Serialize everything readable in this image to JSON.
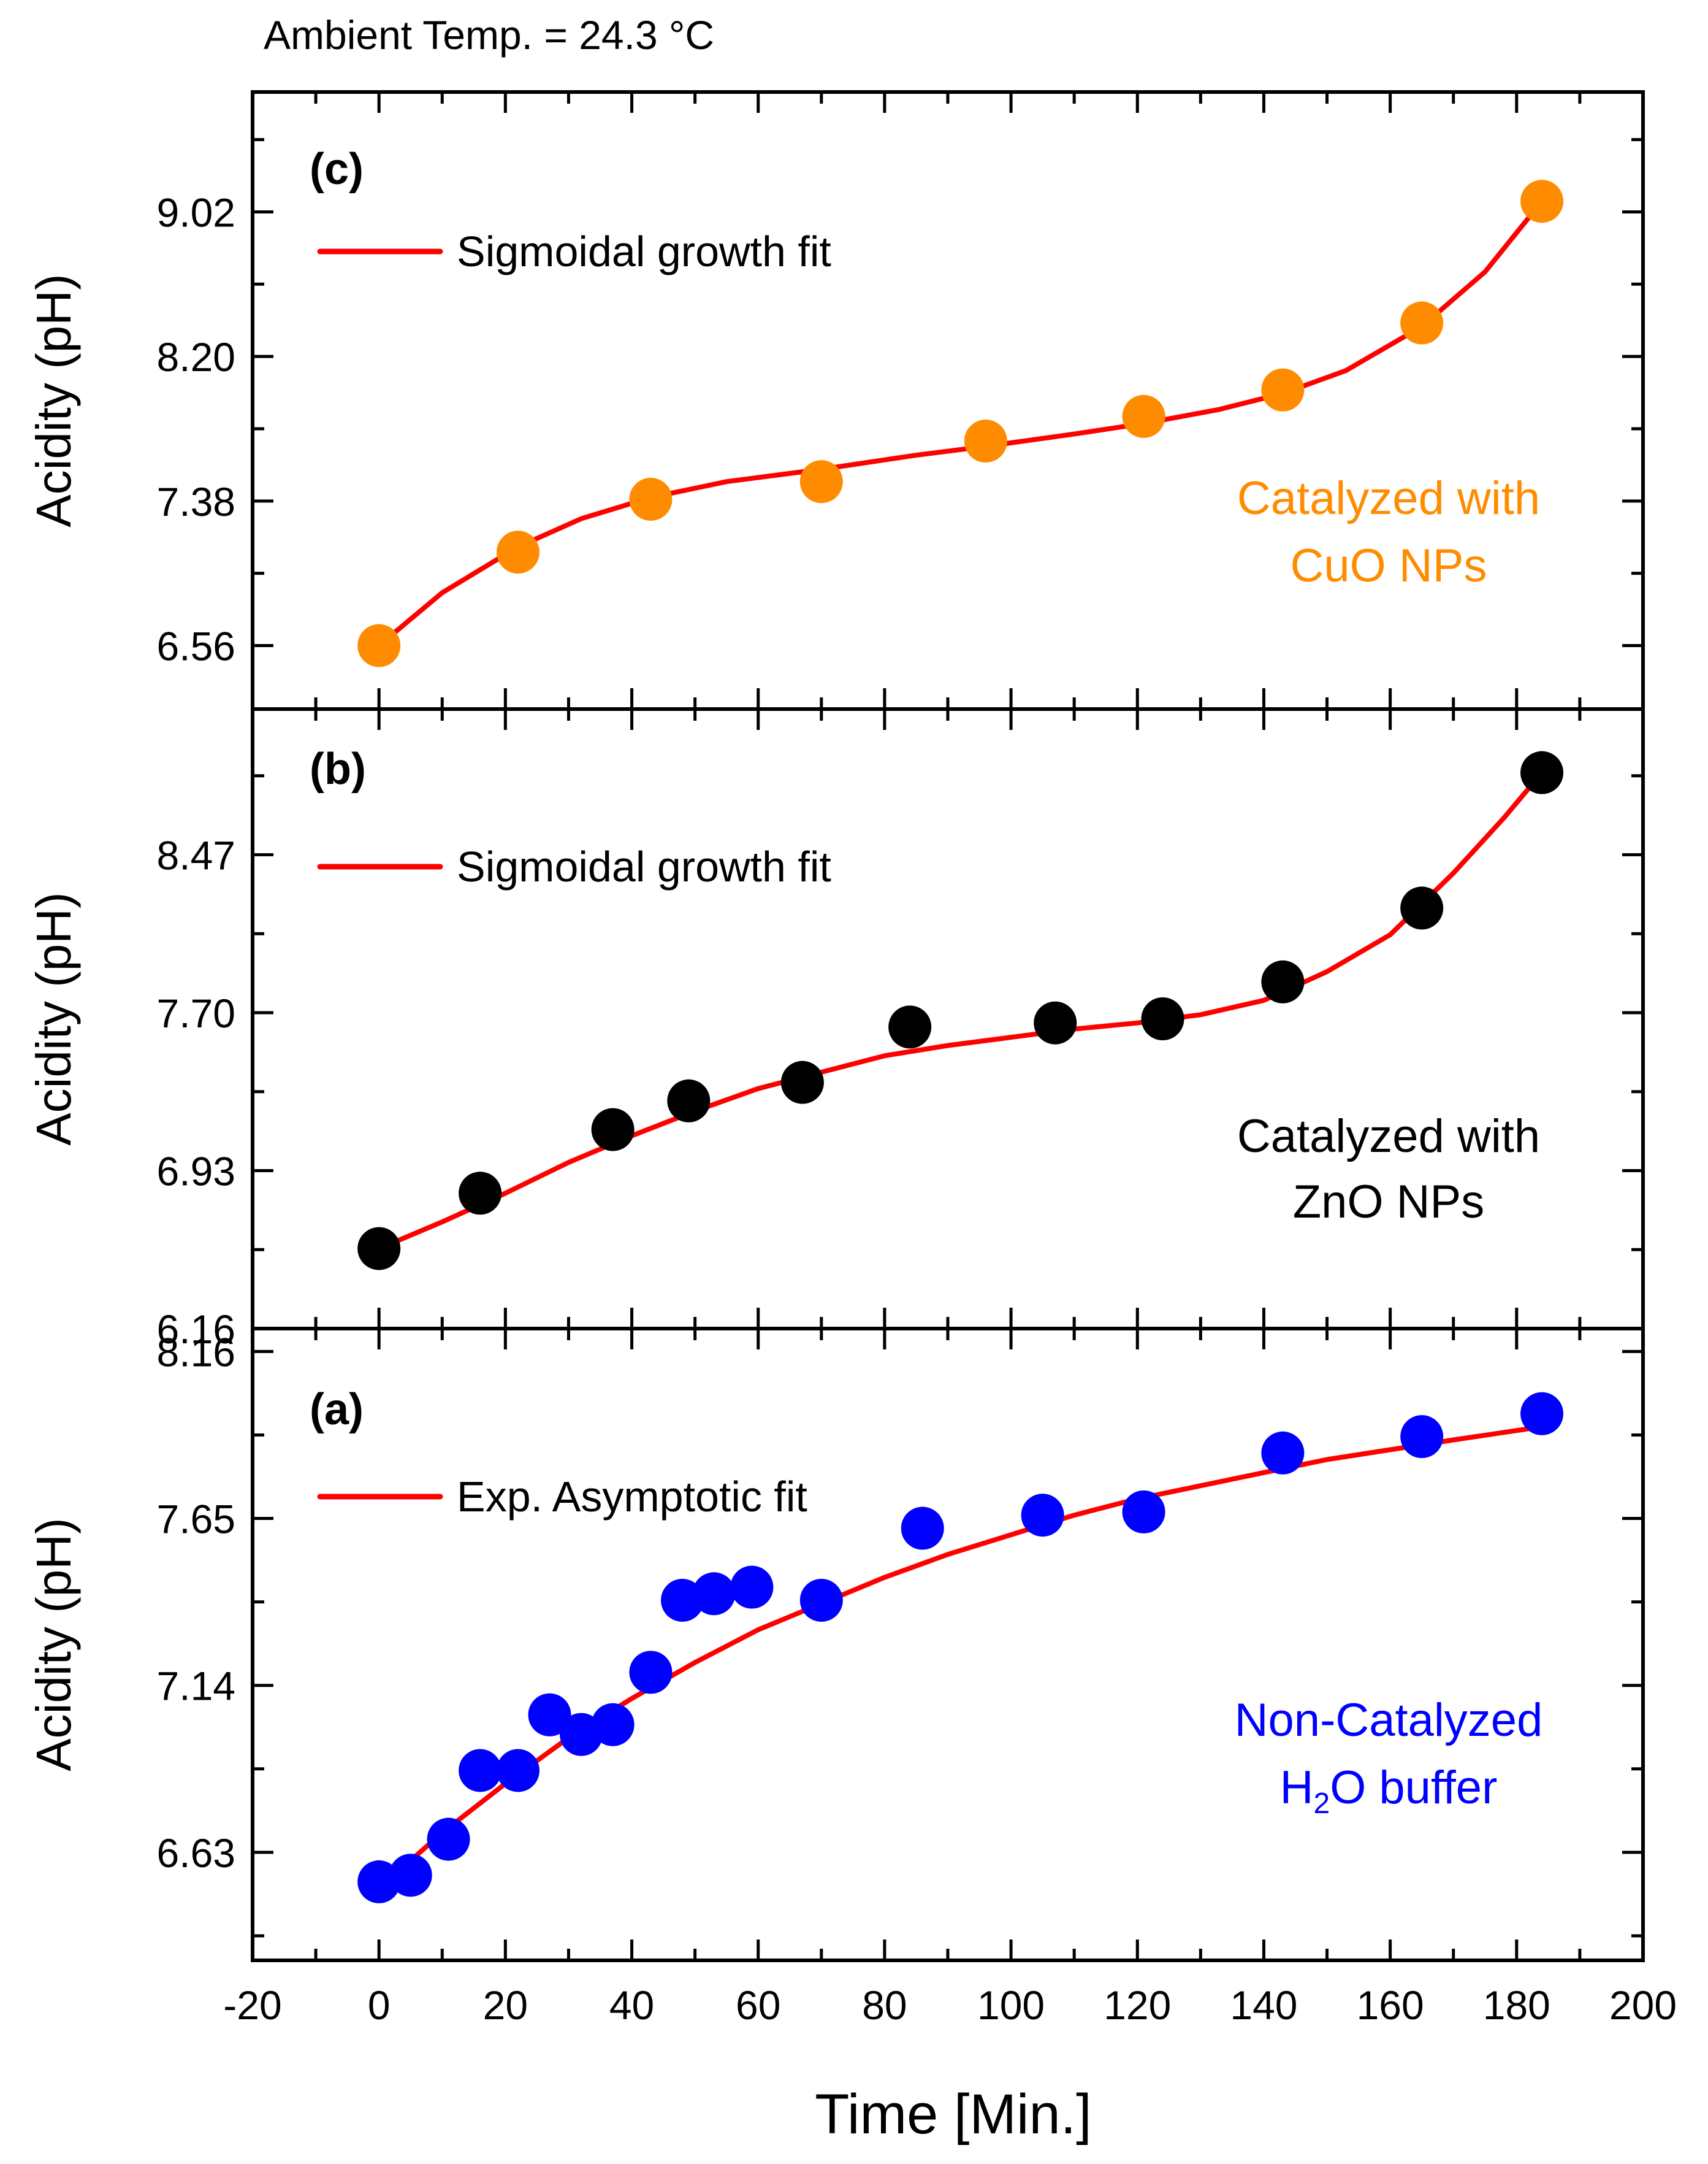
{
  "figure": {
    "header": "Ambient Temp. = 24.3 °C",
    "xlabel": "Time [Min.]",
    "colors": {
      "fit": "#ff0000",
      "axis": "#000000",
      "cuo": "#ff8c00",
      "zno": "#000000",
      "h2o": "#0000ff"
    }
  },
  "chart_data": [
    {
      "type": "scatter",
      "panel": "(c)",
      "ylabel": "Acidity (pH)",
      "xlim": [
        -20,
        200
      ],
      "xticks": [
        -20,
        0,
        20,
        40,
        60,
        80,
        100,
        120,
        140,
        160,
        180,
        200
      ],
      "ylim": [
        6.2,
        9.7
      ],
      "yticks": [
        6.56,
        7.38,
        8.2,
        9.02
      ],
      "ytick_labels": [
        "6.56",
        "7.38",
        "8.20",
        "9.02"
      ],
      "legend": "Sigmoidal growth fit",
      "annotation": [
        "Catalyzed with",
        "CuO NPs"
      ],
      "color": "#ff8c00",
      "points": {
        "x": [
          0,
          22,
          43,
          70,
          96,
          121,
          143,
          165,
          184
        ],
        "y": [
          6.56,
          7.09,
          7.39,
          7.49,
          7.72,
          7.86,
          8.01,
          8.39,
          9.08
        ]
      },
      "fit": {
        "x": [
          0,
          10,
          22,
          32,
          43,
          55,
          70,
          85,
          96,
          110,
          121,
          133,
          143,
          153,
          165,
          175,
          184
        ],
        "y": [
          6.56,
          6.86,
          7.12,
          7.28,
          7.4,
          7.49,
          7.56,
          7.64,
          7.69,
          7.76,
          7.82,
          7.9,
          7.99,
          8.12,
          8.37,
          8.68,
          9.08
        ]
      }
    },
    {
      "type": "scatter",
      "panel": "(b)",
      "ylabel": "Acidity (pH)",
      "xlim": [
        -20,
        200
      ],
      "xticks": [
        -20,
        0,
        20,
        40,
        60,
        80,
        100,
        120,
        140,
        160,
        180,
        200
      ],
      "ylim": [
        6.16,
        9.18
      ],
      "yticks": [
        6.16,
        6.93,
        7.7,
        8.47
      ],
      "ytick_labels": [
        "6.16",
        "6.93",
        "7.70",
        "8.47"
      ],
      "legend": "Sigmoidal growth fit",
      "annotation": [
        "Catalyzed with",
        "ZnO NPs"
      ],
      "color": "#000000",
      "points": {
        "x": [
          0,
          16,
          37,
          49,
          67,
          84,
          107,
          124,
          143,
          165,
          184
        ],
        "y": [
          6.55,
          6.82,
          7.13,
          7.27,
          7.36,
          7.63,
          7.65,
          7.67,
          7.85,
          8.21,
          8.87
        ]
      },
      "fit": {
        "x": [
          0,
          10,
          20,
          30,
          40,
          50,
          60,
          70,
          80,
          90,
          100,
          110,
          120,
          130,
          140,
          150,
          160,
          170,
          178,
          184
        ],
        "y": [
          6.55,
          6.68,
          6.82,
          6.97,
          7.1,
          7.22,
          7.33,
          7.41,
          7.49,
          7.54,
          7.58,
          7.62,
          7.65,
          7.69,
          7.76,
          7.9,
          8.08,
          8.38,
          8.65,
          8.87
        ]
      }
    },
    {
      "type": "scatter",
      "panel": "(a)",
      "ylabel": "Acidity (pH)",
      "xlim": [
        -20,
        200
      ],
      "xticks": [
        -20,
        0,
        20,
        40,
        60,
        80,
        100,
        120,
        140,
        160,
        180,
        200
      ],
      "ylim": [
        6.3,
        8.23
      ],
      "yticks": [
        6.63,
        7.14,
        7.65,
        8.16
      ],
      "ytick_labels": [
        "6.63",
        "7.14",
        "7.65",
        "8.16"
      ],
      "legend": "Exp. Asymptotic fit",
      "annotation": [
        "Non-Catalyzed",
        "H",
        "2",
        "O buffer"
      ],
      "color": "#0000ff",
      "points": {
        "x": [
          0,
          5,
          11,
          16,
          22,
          27,
          32,
          37,
          43,
          48,
          53,
          59,
          70,
          86,
          105,
          121,
          143,
          165,
          184
        ],
        "y": [
          6.54,
          6.56,
          6.67,
          6.88,
          6.88,
          7.05,
          6.99,
          7.02,
          7.18,
          7.4,
          7.42,
          7.44,
          7.4,
          7.62,
          7.66,
          7.67,
          7.85,
          7.9,
          7.97
        ]
      },
      "fit": {
        "x": [
          0,
          10,
          20,
          30,
          40,
          50,
          60,
          70,
          80,
          90,
          100,
          110,
          120,
          130,
          140,
          150,
          160,
          170,
          184
        ],
        "y": [
          6.52,
          6.69,
          6.84,
          6.98,
          7.1,
          7.21,
          7.31,
          7.39,
          7.47,
          7.54,
          7.6,
          7.66,
          7.71,
          7.75,
          7.79,
          7.83,
          7.86,
          7.89,
          7.93
        ]
      }
    }
  ]
}
